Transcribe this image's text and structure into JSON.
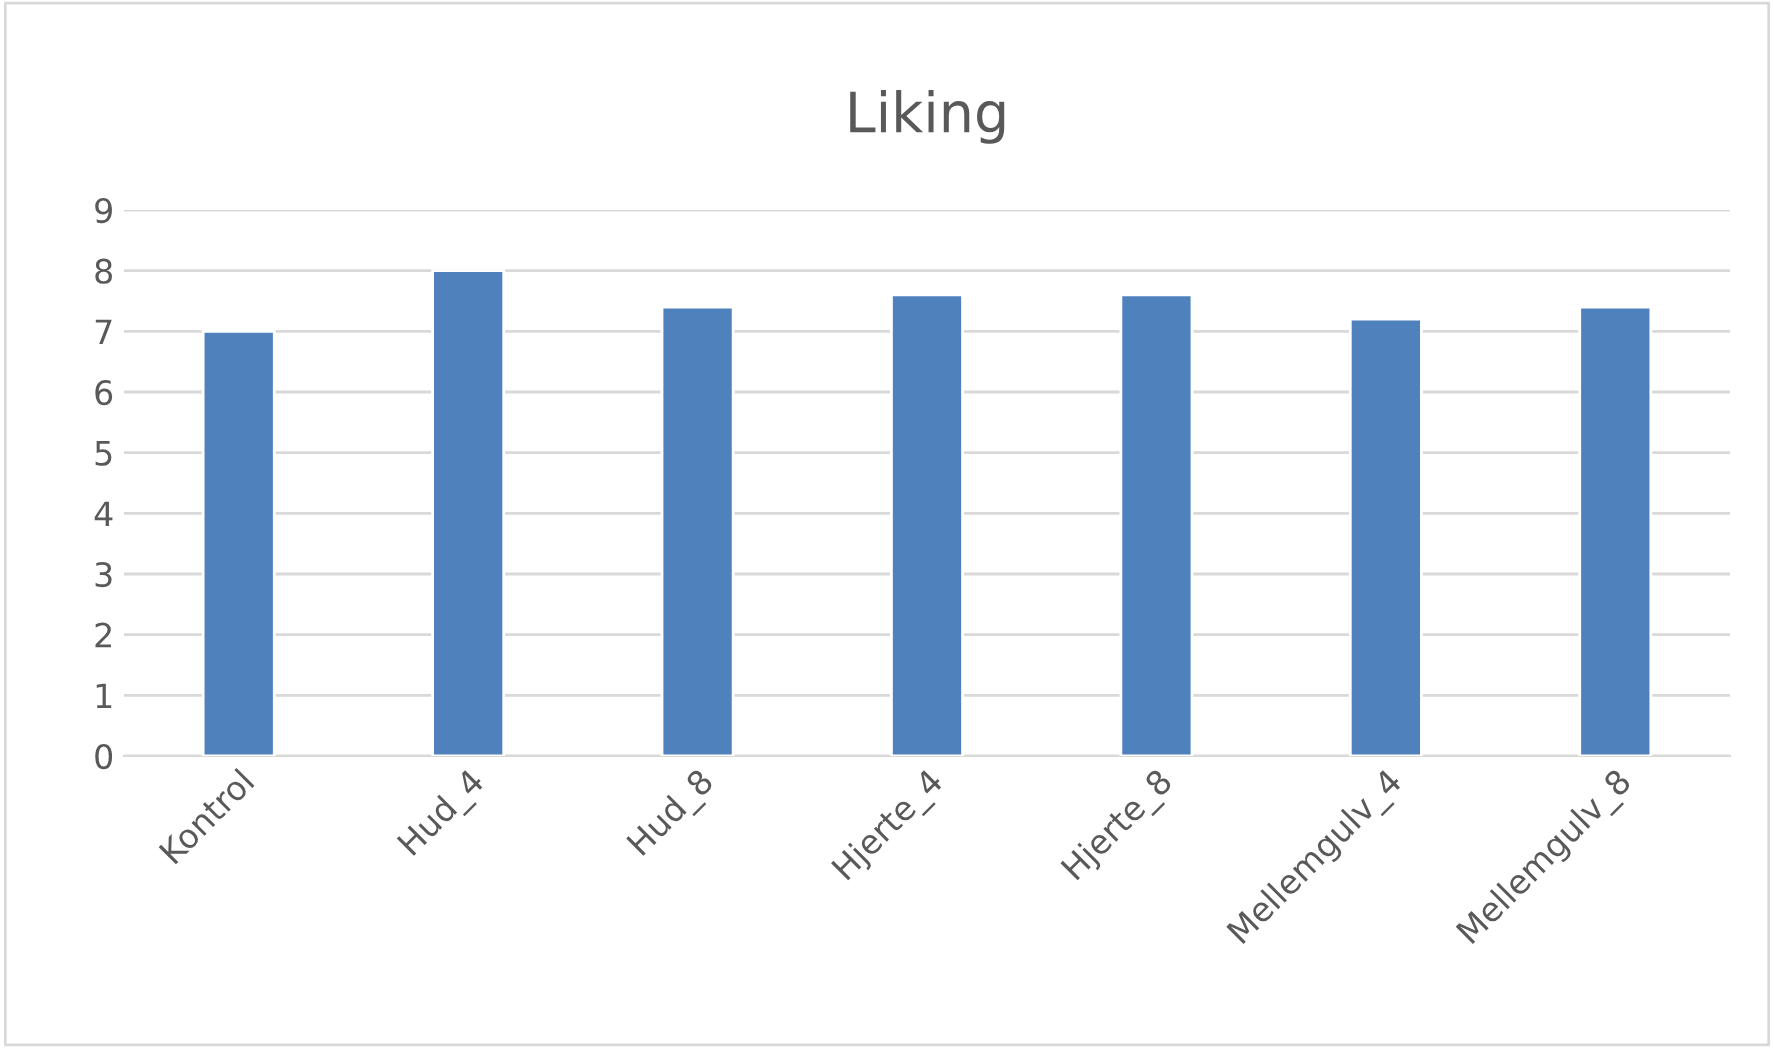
{
  "chart_data": {
    "type": "bar",
    "title": "Liking",
    "categories": [
      "Kontrol",
      "Hud_4",
      "Hud_8",
      "Hjerte_4",
      "Hjerte_8",
      "Mellemgulv_4",
      "Mellemgulv_8"
    ],
    "values": [
      7,
      8,
      7.4,
      7.6,
      7.6,
      7.2,
      7.4
    ],
    "color": "#4f81bd",
    "ylim": [
      0,
      9
    ],
    "yticks": [
      0,
      1,
      2,
      3,
      4,
      5,
      6,
      7,
      8,
      9
    ],
    "grid": "y",
    "legend": false
  }
}
